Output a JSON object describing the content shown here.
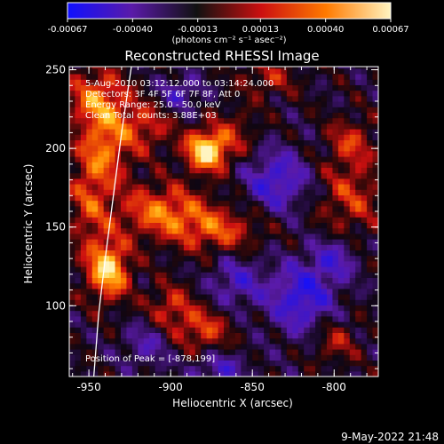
{
  "colorbar": {
    "ticks": [
      "-0.00067",
      "-0.00040",
      "-0.00013",
      "0.00013",
      "0.00040",
      "0.00067"
    ],
    "tick_values": [
      -0.00067,
      -0.0004,
      -0.00013,
      0.00013,
      0.0004,
      0.00067
    ],
    "unit_label": "(photons cm⁻² s⁻¹ asec⁻²)",
    "range": [
      -0.00067,
      0.00067
    ],
    "colors": [
      "#1010ff",
      "#5a1aa8",
      "#111111",
      "#cc1010",
      "#ff7a00",
      "#fff4c0"
    ]
  },
  "chart_data": {
    "type": "heatmap",
    "title": "Reconstructed RHESSI Image",
    "xlabel": "Heliocentric X (arcsec)",
    "ylabel": "Heliocentric Y (arcsec)",
    "xlim": [
      -962,
      -773
    ],
    "ylim": [
      55,
      252
    ],
    "xticks": [
      -950,
      -900,
      -850,
      -800
    ],
    "yticks": [
      100,
      150,
      200,
      250
    ],
    "xtick_labels": [
      "-950",
      "-900",
      "-850",
      "-800"
    ],
    "ytick_labels": [
      "100",
      "150",
      "200",
      "250"
    ],
    "annotations": [
      "5-Aug-2010 03:12:12.000 to 03:14:24.000",
      "Detectors: 3F 4F 5F 6F 7F 8F, Att 0",
      "Energy Range: 25.0 - 50.0 keV",
      "Clean    Total counts: 3.88E+03"
    ],
    "peak_label": "Position of Peak = [-878,199]",
    "peak": [
      -878,
      199
    ],
    "limb_points": [
      [
        -924,
        252
      ],
      [
        -930,
        210
      ],
      [
        -935,
        170
      ],
      [
        -940,
        130
      ],
      [
        -944,
        95
      ],
      [
        -947,
        55
      ]
    ],
    "hot_spots": [
      {
        "x": -878,
        "y": 199,
        "sx": 9,
        "sy": 9,
        "amp": 0.00075
      },
      {
        "x": -938,
        "y": 123,
        "sx": 9,
        "sy": 13,
        "amp": 0.00066
      },
      {
        "x": -945,
        "y": 232,
        "sx": 13,
        "sy": 13,
        "amp": 0.00044
      },
      {
        "x": -940,
        "y": 200,
        "sx": 11,
        "sy": 17,
        "amp": 0.0004
      },
      {
        "x": -905,
        "y": 160,
        "sx": 20,
        "sy": 12,
        "amp": 0.00045
      },
      {
        "x": -870,
        "y": 148,
        "sx": 18,
        "sy": 10,
        "amp": 0.00035
      },
      {
        "x": -915,
        "y": 215,
        "sx": 12,
        "sy": 12,
        "amp": 0.0003
      },
      {
        "x": -950,
        "y": 165,
        "sx": 9,
        "sy": 22,
        "amp": 0.0003
      },
      {
        "x": -880,
        "y": 85,
        "sx": 12,
        "sy": 10,
        "amp": 0.00035
      },
      {
        "x": -900,
        "y": 100,
        "sx": 10,
        "sy": 10,
        "amp": 0.0003
      },
      {
        "x": -790,
        "y": 170,
        "sx": 14,
        "sy": 18,
        "amp": 0.0003
      },
      {
        "x": -790,
        "y": 205,
        "sx": 10,
        "sy": 10,
        "amp": 0.00028
      },
      {
        "x": -840,
        "y": 245,
        "sx": 12,
        "sy": 8,
        "amp": 0.00025
      },
      {
        "x": -800,
        "y": 78,
        "sx": 10,
        "sy": 10,
        "amp": 0.00025
      },
      {
        "x": -860,
        "y": 210,
        "sx": 10,
        "sy": 12,
        "amp": 0.0002
      },
      {
        "x": -835,
        "y": 180,
        "sx": 14,
        "sy": 14,
        "amp": -0.0004
      },
      {
        "x": -820,
        "y": 105,
        "sx": 14,
        "sy": 16,
        "amp": -0.00045
      },
      {
        "x": -860,
        "y": 115,
        "sx": 12,
        "sy": 12,
        "amp": -0.0003
      },
      {
        "x": -800,
        "y": 130,
        "sx": 10,
        "sy": 10,
        "amp": -0.0003
      },
      {
        "x": -870,
        "y": 60,
        "sx": 12,
        "sy": 8,
        "amp": -0.0003
      },
      {
        "x": -915,
        "y": 75,
        "sx": 10,
        "sy": 10,
        "amp": -0.00025
      },
      {
        "x": -895,
        "y": 235,
        "sx": 10,
        "sy": 8,
        "amp": -0.0003
      }
    ]
  },
  "footer": {
    "timestamp": "9-May-2022 21:48"
  }
}
